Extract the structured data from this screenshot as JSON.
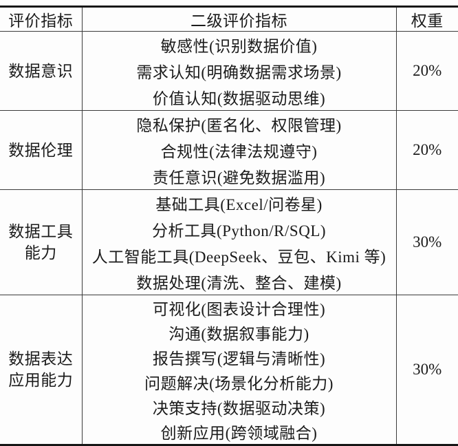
{
  "table": {
    "headers": [
      "评价指标",
      "二级评价指标",
      "权重"
    ],
    "groups": [
      {
        "category_lines": [
          "数据意识"
        ],
        "items": [
          "敏感性(识别数据价值)",
          "需求认知(明确数据需求场景)",
          "价值认知(数据驱动思维)"
        ],
        "weight": "20%"
      },
      {
        "category_lines": [
          "数据伦理"
        ],
        "items": [
          "隐私保护(匿名化、权限管理)",
          "合规性(法律法规遵守)",
          "责任意识(避免数据滥用)"
        ],
        "weight": "20%"
      },
      {
        "category_lines": [
          "数据工具",
          "能力"
        ],
        "items": [
          "基础工具(Excel/问卷星)",
          "分析工具(Python/R/SQL)",
          "人工智能工具(DeepSeek、豆包、Kimi 等)",
          "数据处理(清洗、整合、建模)"
        ],
        "weight": "30%"
      },
      {
        "category_lines": [
          "数据表达",
          "应用能力"
        ],
        "items": [
          "可视化(图表设计合理性)",
          "沟通(数据叙事能力)",
          "报告撰写(逻辑与清晰性)",
          "问题解决(场景化分析能力)",
          "决策支持(数据驱动决策)",
          "创新应用(跨领域融合)"
        ],
        "weight": "30%"
      }
    ],
    "colors": {
      "background": "#fdfdfd",
      "text": "#1b1b1b",
      "thick_border": "#161616",
      "thin_border": "#3a3a3a"
    }
  }
}
